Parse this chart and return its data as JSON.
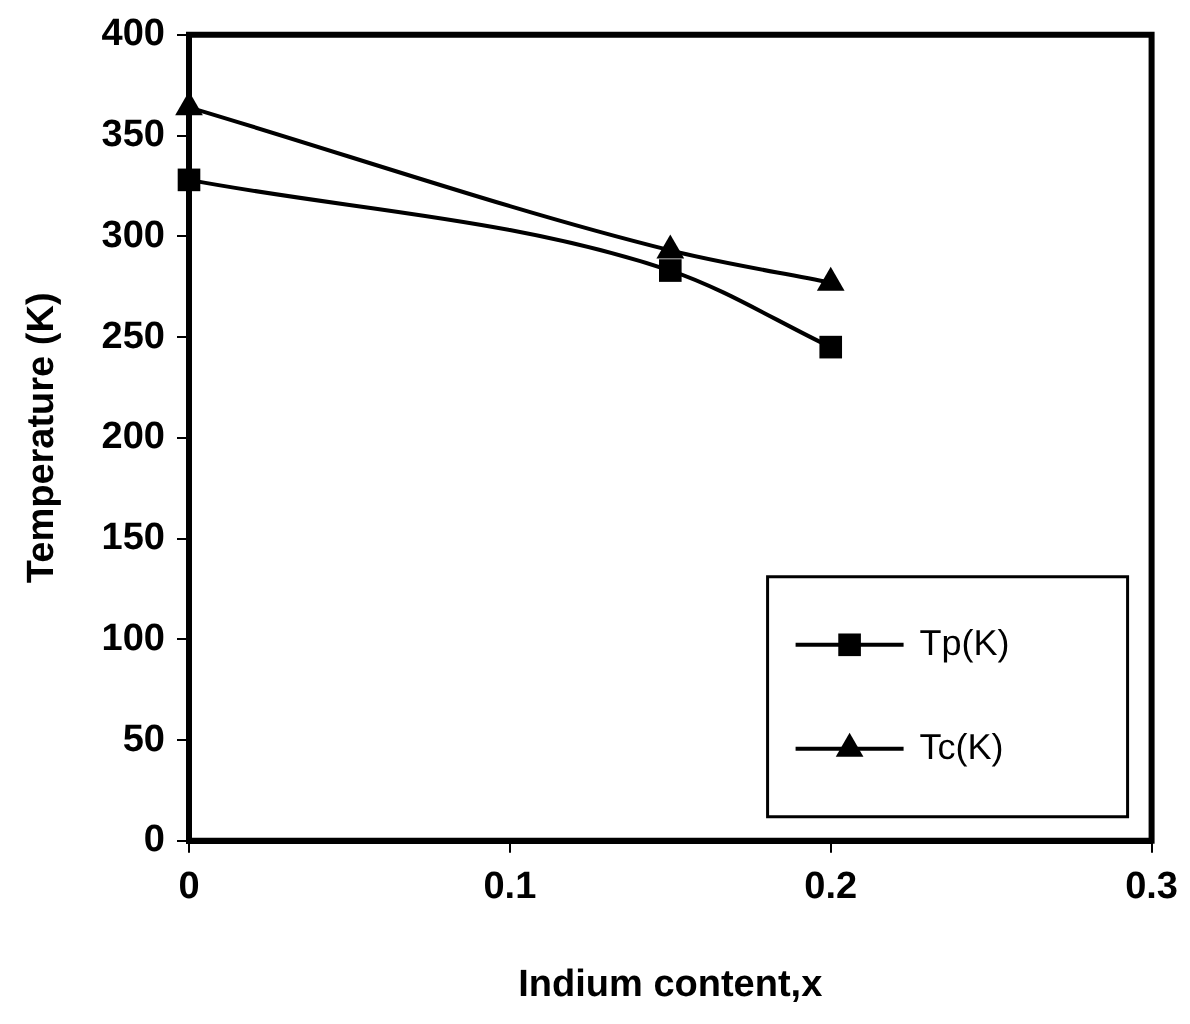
{
  "chart_data": {
    "type": "line",
    "xlabel": "Indium content,x",
    "ylabel": "Temperature (K)",
    "x": [
      0,
      0.15,
      0.2
    ],
    "series": [
      {
        "name": "Tp(K)",
        "color": "#000000",
        "values": [
          328,
          283,
          245
        ],
        "marker": "square"
      },
      {
        "name": "Tc(K)",
        "color": "#000000",
        "values": [
          364,
          293,
          277
        ],
        "marker": "triangle"
      }
    ],
    "xlim": [
      0,
      0.3
    ],
    "xticks": [
      0,
      {
        "value": 0.1,
        "label": "0.1"
      },
      {
        "value": 0.2,
        "label": "0.2"
      },
      {
        "value": 0.3,
        "label": "0.3"
      }
    ],
    "ylim": [
      0,
      400
    ],
    "yticks": [
      0,
      50,
      100,
      150,
      200,
      250,
      300,
      350,
      400
    ],
    "grid": false,
    "legend": "bottom right",
    "line_style": "solid"
  }
}
